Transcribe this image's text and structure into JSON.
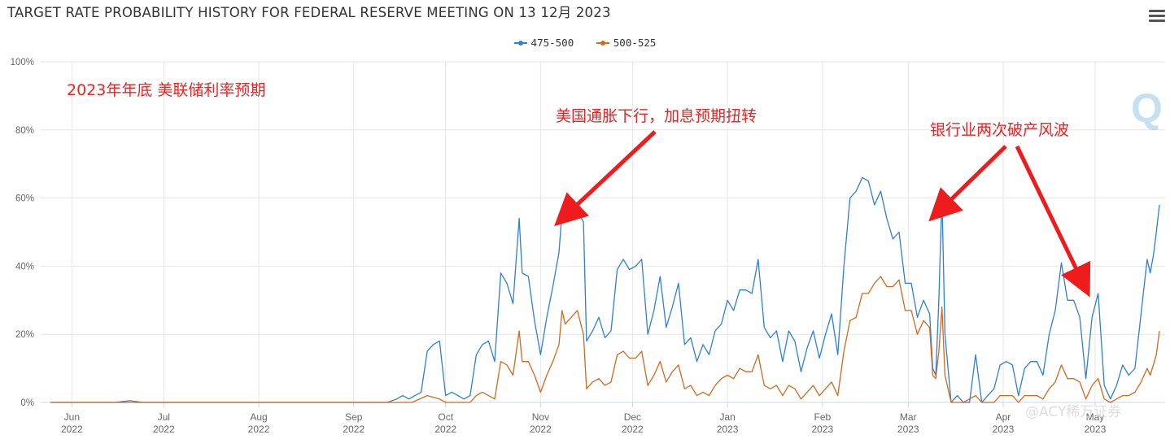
{
  "title": "TARGET RATE PROBABILITY HISTORY FOR FEDERAL RESERVE MEETING ON 13 12月 2023",
  "menu_icon": "hamburger-menu-icon",
  "watermark": "@ACY稀万证券",
  "annotations": [
    {
      "text": "2023年年底 美联储利率预期"
    },
    {
      "text": "美国通胀下行，加息预期扭转"
    },
    {
      "text": "银行业两次破产风波"
    }
  ],
  "chart_data": {
    "type": "line",
    "title": "TARGET RATE PROBABILITY HISTORY FOR FEDERAL RESERVE MEETING ON 13 12月 2023",
    "ylim": [
      0,
      100
    ],
    "y_ticks": [
      "0%",
      "20%",
      "40%",
      "60%",
      "80%",
      "100%"
    ],
    "x_range": [
      "2022-05-25",
      "2023-05-22"
    ],
    "x_ticks": [
      {
        "date": "2022-06-01",
        "month": "Jun",
        "year": "2022"
      },
      {
        "date": "2022-07-01",
        "month": "Jul",
        "year": "2022"
      },
      {
        "date": "2022-08-01",
        "month": "Aug",
        "year": "2022"
      },
      {
        "date": "2022-09-01",
        "month": "Sep",
        "year": "2022"
      },
      {
        "date": "2022-10-01",
        "month": "Oct",
        "year": "2022"
      },
      {
        "date": "2022-11-01",
        "month": "Nov",
        "year": "2022"
      },
      {
        "date": "2022-12-01",
        "month": "Dec",
        "year": "2022"
      },
      {
        "date": "2023-01-01",
        "month": "Jan",
        "year": "2023"
      },
      {
        "date": "2023-02-01",
        "month": "Feb",
        "year": "2023"
      },
      {
        "date": "2023-03-01",
        "month": "Mar",
        "year": "2023"
      },
      {
        "date": "2023-04-01",
        "month": "Apr",
        "year": "2023"
      },
      {
        "date": "2023-05-01",
        "month": "May",
        "year": "2023"
      }
    ],
    "grid": true,
    "legend_position": "top-center",
    "series": [
      {
        "name": "475-500",
        "color": "#2f7ed8",
        "points": [
          [
            "2022-05-25",
            0
          ],
          [
            "2022-06-15",
            0
          ],
          [
            "2022-06-20",
            0.5
          ],
          [
            "2022-06-24",
            0
          ],
          [
            "2022-09-12",
            0
          ],
          [
            "2022-09-15",
            1
          ],
          [
            "2022-09-17",
            2
          ],
          [
            "2022-09-19",
            1
          ],
          [
            "2022-09-21",
            2
          ],
          [
            "2022-09-23",
            3
          ],
          [
            "2022-09-25",
            15
          ],
          [
            "2022-09-27",
            17
          ],
          [
            "2022-09-29",
            18
          ],
          [
            "2022-10-01",
            2
          ],
          [
            "2022-10-03",
            3
          ],
          [
            "2022-10-05",
            2
          ],
          [
            "2022-10-07",
            1
          ],
          [
            "2022-10-09",
            2
          ],
          [
            "2022-10-11",
            14
          ],
          [
            "2022-10-13",
            17
          ],
          [
            "2022-10-15",
            18
          ],
          [
            "2022-10-17",
            12
          ],
          [
            "2022-10-19",
            38
          ],
          [
            "2022-10-21",
            35
          ],
          [
            "2022-10-23",
            29
          ],
          [
            "2022-10-25",
            54
          ],
          [
            "2022-10-26",
            38
          ],
          [
            "2022-10-28",
            37
          ],
          [
            "2022-10-30",
            24
          ],
          [
            "2022-11-01",
            14
          ],
          [
            "2022-11-03",
            25
          ],
          [
            "2022-11-05",
            34
          ],
          [
            "2022-11-07",
            44
          ],
          [
            "2022-11-08",
            56
          ],
          [
            "2022-11-09",
            53
          ],
          [
            "2022-11-11",
            55
          ],
          [
            "2022-11-13",
            56
          ],
          [
            "2022-11-15",
            53
          ],
          [
            "2022-11-16",
            18
          ],
          [
            "2022-11-18",
            21
          ],
          [
            "2022-11-20",
            25
          ],
          [
            "2022-11-22",
            19
          ],
          [
            "2022-11-24",
            21
          ],
          [
            "2022-11-26",
            39
          ],
          [
            "2022-11-28",
            42
          ],
          [
            "2022-11-30",
            39
          ],
          [
            "2022-12-02",
            40
          ],
          [
            "2022-12-04",
            42
          ],
          [
            "2022-12-06",
            20
          ],
          [
            "2022-12-08",
            27
          ],
          [
            "2022-12-10",
            37
          ],
          [
            "2022-12-12",
            22
          ],
          [
            "2022-12-14",
            28
          ],
          [
            "2022-12-16",
            35
          ],
          [
            "2022-12-18",
            17
          ],
          [
            "2022-12-20",
            19
          ],
          [
            "2022-12-22",
            12
          ],
          [
            "2022-12-24",
            17
          ],
          [
            "2022-12-26",
            14
          ],
          [
            "2022-12-28",
            21
          ],
          [
            "2022-12-30",
            23
          ],
          [
            "2023-01-01",
            30
          ],
          [
            "2023-01-03",
            27
          ],
          [
            "2023-01-05",
            33
          ],
          [
            "2023-01-07",
            33
          ],
          [
            "2023-01-09",
            32
          ],
          [
            "2023-01-11",
            42
          ],
          [
            "2023-01-13",
            22
          ],
          [
            "2023-01-15",
            19
          ],
          [
            "2023-01-17",
            21
          ],
          [
            "2023-01-19",
            12
          ],
          [
            "2023-01-21",
            21
          ],
          [
            "2023-01-23",
            18
          ],
          [
            "2023-01-25",
            9
          ],
          [
            "2023-01-27",
            16
          ],
          [
            "2023-01-29",
            21
          ],
          [
            "2023-01-31",
            13
          ],
          [
            "2023-02-02",
            20
          ],
          [
            "2023-02-04",
            26
          ],
          [
            "2023-02-06",
            14
          ],
          [
            "2023-02-08",
            40
          ],
          [
            "2023-02-10",
            60
          ],
          [
            "2023-02-12",
            62
          ],
          [
            "2023-02-14",
            66
          ],
          [
            "2023-02-16",
            65
          ],
          [
            "2023-02-18",
            58
          ],
          [
            "2023-02-20",
            62
          ],
          [
            "2023-02-22",
            54
          ],
          [
            "2023-02-24",
            48
          ],
          [
            "2023-02-26",
            50
          ],
          [
            "2023-02-28",
            35
          ],
          [
            "2023-03-02",
            35
          ],
          [
            "2023-03-04",
            25
          ],
          [
            "2023-03-06",
            30
          ],
          [
            "2023-03-08",
            26
          ],
          [
            "2023-03-09",
            10
          ],
          [
            "2023-03-10",
            8
          ],
          [
            "2023-03-11",
            30
          ],
          [
            "2023-03-12",
            61
          ],
          [
            "2023-03-13",
            20
          ],
          [
            "2023-03-15",
            0
          ],
          [
            "2023-03-17",
            2
          ],
          [
            "2023-03-19",
            0
          ],
          [
            "2023-03-21",
            0
          ],
          [
            "2023-03-23",
            14
          ],
          [
            "2023-03-25",
            0
          ],
          [
            "2023-03-27",
            2
          ],
          [
            "2023-03-29",
            4
          ],
          [
            "2023-03-31",
            11
          ],
          [
            "2023-04-02",
            12
          ],
          [
            "2023-04-04",
            11
          ],
          [
            "2023-04-06",
            2
          ],
          [
            "2023-04-08",
            10
          ],
          [
            "2023-04-10",
            12
          ],
          [
            "2023-04-12",
            12
          ],
          [
            "2023-04-14",
            8
          ],
          [
            "2023-04-16",
            20
          ],
          [
            "2023-04-18",
            27
          ],
          [
            "2023-04-20",
            41
          ],
          [
            "2023-04-22",
            30
          ],
          [
            "2023-04-24",
            30
          ],
          [
            "2023-04-26",
            25
          ],
          [
            "2023-04-28",
            7
          ],
          [
            "2023-04-30",
            25
          ],
          [
            "2023-05-02",
            32
          ],
          [
            "2023-05-04",
            5
          ],
          [
            "2023-05-06",
            1
          ],
          [
            "2023-05-08",
            5
          ],
          [
            "2023-05-10",
            11
          ],
          [
            "2023-05-12",
            8
          ],
          [
            "2023-05-14",
            10
          ],
          [
            "2023-05-16",
            26
          ],
          [
            "2023-05-18",
            42
          ],
          [
            "2023-05-19",
            38
          ],
          [
            "2023-05-20",
            43
          ],
          [
            "2023-05-21",
            50
          ],
          [
            "2023-05-22",
            58
          ]
        ]
      },
      {
        "name": "500-525",
        "color": "#d2691e",
        "points": [
          [
            "2022-05-25",
            0
          ],
          [
            "2022-09-20",
            0
          ],
          [
            "2022-09-25",
            2
          ],
          [
            "2022-09-29",
            1
          ],
          [
            "2022-10-01",
            0
          ],
          [
            "2022-10-05",
            0
          ],
          [
            "2022-10-09",
            0
          ],
          [
            "2022-10-11",
            2
          ],
          [
            "2022-10-13",
            3
          ],
          [
            "2022-10-17",
            1
          ],
          [
            "2022-10-19",
            12
          ],
          [
            "2022-10-21",
            11
          ],
          [
            "2022-10-23",
            8
          ],
          [
            "2022-10-25",
            21
          ],
          [
            "2022-10-26",
            12
          ],
          [
            "2022-10-28",
            12
          ],
          [
            "2022-10-30",
            8
          ],
          [
            "2022-11-01",
            3
          ],
          [
            "2022-11-03",
            8
          ],
          [
            "2022-11-05",
            12
          ],
          [
            "2022-11-07",
            17
          ],
          [
            "2022-11-08",
            27
          ],
          [
            "2022-11-09",
            23
          ],
          [
            "2022-11-11",
            25
          ],
          [
            "2022-11-13",
            27
          ],
          [
            "2022-11-15",
            20
          ],
          [
            "2022-11-16",
            4
          ],
          [
            "2022-11-18",
            6
          ],
          [
            "2022-11-20",
            7
          ],
          [
            "2022-11-22",
            5
          ],
          [
            "2022-11-24",
            6
          ],
          [
            "2022-11-26",
            14
          ],
          [
            "2022-11-28",
            15
          ],
          [
            "2022-11-30",
            13
          ],
          [
            "2022-12-02",
            13
          ],
          [
            "2022-12-04",
            15
          ],
          [
            "2022-12-06",
            5
          ],
          [
            "2022-12-08",
            8
          ],
          [
            "2022-12-10",
            12
          ],
          [
            "2022-12-12",
            6
          ],
          [
            "2022-12-14",
            9
          ],
          [
            "2022-12-16",
            11
          ],
          [
            "2022-12-18",
            4
          ],
          [
            "2022-12-20",
            5
          ],
          [
            "2022-12-22",
            2
          ],
          [
            "2022-12-24",
            3
          ],
          [
            "2022-12-26",
            2
          ],
          [
            "2022-12-28",
            5
          ],
          [
            "2022-12-30",
            7
          ],
          [
            "2023-01-01",
            8
          ],
          [
            "2023-01-03",
            7
          ],
          [
            "2023-01-05",
            10
          ],
          [
            "2023-01-07",
            9
          ],
          [
            "2023-01-09",
            9
          ],
          [
            "2023-01-11",
            14
          ],
          [
            "2023-01-13",
            5
          ],
          [
            "2023-01-15",
            4
          ],
          [
            "2023-01-17",
            5
          ],
          [
            "2023-01-19",
            2
          ],
          [
            "2023-01-21",
            5
          ],
          [
            "2023-01-23",
            4
          ],
          [
            "2023-01-25",
            1
          ],
          [
            "2023-01-27",
            3
          ],
          [
            "2023-01-29",
            5
          ],
          [
            "2023-01-31",
            2
          ],
          [
            "2023-02-02",
            4
          ],
          [
            "2023-02-04",
            6
          ],
          [
            "2023-02-06",
            2
          ],
          [
            "2023-02-08",
            15
          ],
          [
            "2023-02-10",
            24
          ],
          [
            "2023-02-12",
            25
          ],
          [
            "2023-02-14",
            32
          ],
          [
            "2023-02-16",
            32
          ],
          [
            "2023-02-18",
            35
          ],
          [
            "2023-02-20",
            37
          ],
          [
            "2023-02-22",
            34
          ],
          [
            "2023-02-24",
            34
          ],
          [
            "2023-02-26",
            36
          ],
          [
            "2023-02-28",
            27
          ],
          [
            "2023-03-02",
            27
          ],
          [
            "2023-03-04",
            20
          ],
          [
            "2023-03-06",
            24
          ],
          [
            "2023-03-08",
            22
          ],
          [
            "2023-03-09",
            8
          ],
          [
            "2023-03-10",
            7
          ],
          [
            "2023-03-11",
            15
          ],
          [
            "2023-03-12",
            28
          ],
          [
            "2023-03-13",
            8
          ],
          [
            "2023-03-15",
            0
          ],
          [
            "2023-03-17",
            0
          ],
          [
            "2023-03-19",
            0
          ],
          [
            "2023-03-23",
            2
          ],
          [
            "2023-03-25",
            0
          ],
          [
            "2023-03-29",
            0
          ],
          [
            "2023-03-31",
            2
          ],
          [
            "2023-04-02",
            2
          ],
          [
            "2023-04-04",
            2
          ],
          [
            "2023-04-06",
            0
          ],
          [
            "2023-04-08",
            2
          ],
          [
            "2023-04-10",
            2
          ],
          [
            "2023-04-12",
            2
          ],
          [
            "2023-04-14",
            1
          ],
          [
            "2023-04-16",
            4
          ],
          [
            "2023-04-18",
            6
          ],
          [
            "2023-04-20",
            11
          ],
          [
            "2023-04-22",
            7
          ],
          [
            "2023-04-24",
            7
          ],
          [
            "2023-04-26",
            6
          ],
          [
            "2023-04-28",
            1
          ],
          [
            "2023-04-30",
            5
          ],
          [
            "2023-05-02",
            7
          ],
          [
            "2023-05-04",
            1
          ],
          [
            "2023-05-06",
            0
          ],
          [
            "2023-05-08",
            1
          ],
          [
            "2023-05-10",
            2
          ],
          [
            "2023-05-12",
            2
          ],
          [
            "2023-05-14",
            3
          ],
          [
            "2023-05-16",
            6
          ],
          [
            "2023-05-18",
            10
          ],
          [
            "2023-05-19",
            8
          ],
          [
            "2023-05-20",
            11
          ],
          [
            "2023-05-21",
            14
          ],
          [
            "2023-05-22",
            21
          ]
        ]
      }
    ]
  }
}
